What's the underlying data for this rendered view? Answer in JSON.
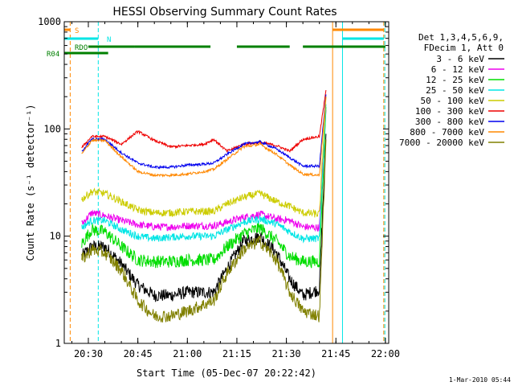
{
  "chart_data": {
    "type": "line",
    "title": "HESSI Observing Summary Count Rates",
    "xlabel": "Start Time (05-Dec-07 20:22:42)",
    "ylabel": "Count Rate (s⁻¹ detector⁻¹)",
    "xlim": [
      "20:22:42",
      "22:01:00"
    ],
    "ylim": [
      1,
      1000
    ],
    "yscale": "log",
    "grid": false,
    "x_ticks": [
      "20:30",
      "20:45",
      "21:00",
      "21:15",
      "21:30",
      "21:45",
      "22:00"
    ],
    "y_ticks": [
      "1",
      "10",
      "100",
      "1000"
    ],
    "legend_position": "right",
    "legend_header": [
      "Det 1,3,4,5,6,9,",
      "FDecim 1, Att 0"
    ],
    "footer_timestamp": "1-Mar-2010 05:44",
    "series": [
      {
        "name": "3 - 6 keV",
        "color": "#000000",
        "x": [
          "20:28",
          "20:31",
          "20:35",
          "20:40",
          "20:45",
          "20:50",
          "20:55",
          "21:00",
          "21:05",
          "21:08",
          "21:12",
          "21:17",
          "21:22",
          "21:27",
          "21:31",
          "21:35",
          "21:40",
          "21:42"
        ],
        "y": [
          6.5,
          8,
          8,
          5.5,
          3.5,
          2.8,
          2.8,
          3,
          3,
          3,
          5,
          9,
          10,
          7,
          4,
          2.8,
          3.2,
          90
        ]
      },
      {
        "name": "6 - 12 keV",
        "color": "#ee00ee",
        "x": [
          "20:28",
          "20:31",
          "20:35",
          "20:40",
          "20:45",
          "20:50",
          "20:55",
          "21:00",
          "21:05",
          "21:08",
          "21:12",
          "21:17",
          "21:22",
          "21:27",
          "21:31",
          "21:35",
          "21:40",
          "21:42"
        ],
        "y": [
          13,
          16.5,
          15.5,
          14,
          12.8,
          12.2,
          12.2,
          12.5,
          12.5,
          12.5,
          13.5,
          15,
          16,
          14.5,
          14,
          12.2,
          12,
          150
        ]
      },
      {
        "name": "12 - 25 keV",
        "color": "#00dd00",
        "x": [
          "20:28",
          "20:31",
          "20:35",
          "20:40",
          "20:45",
          "20:50",
          "20:55",
          "21:00",
          "21:05",
          "21:08",
          "21:12",
          "21:17",
          "21:22",
          "21:27",
          "21:31",
          "21:35",
          "21:40",
          "21:42"
        ],
        "y": [
          8.5,
          11.5,
          11,
          8,
          6,
          5.8,
          5.8,
          6,
          6,
          6,
          8,
          10.5,
          12,
          9,
          6.5,
          5.8,
          5.8,
          160
        ]
      },
      {
        "name": "25 - 50 keV",
        "color": "#00e5e5",
        "x": [
          "20:28",
          "20:31",
          "20:35",
          "20:40",
          "20:45",
          "20:50",
          "20:55",
          "21:00",
          "21:05",
          "21:08",
          "21:12",
          "21:17",
          "21:22",
          "21:27",
          "21:31",
          "21:35",
          "21:40",
          "21:42"
        ],
        "y": [
          12,
          14,
          14,
          11.5,
          10,
          9.5,
          9.8,
          10,
          10,
          10,
          11.5,
          13.5,
          14.5,
          13,
          11,
          9.5,
          9.5,
          170
        ]
      },
      {
        "name": "50 - 100 keV",
        "color": "#cccc00",
        "x": [
          "20:28",
          "20:31",
          "20:35",
          "20:40",
          "20:45",
          "20:50",
          "20:55",
          "21:00",
          "21:05",
          "21:08",
          "21:12",
          "21:17",
          "21:22",
          "21:27",
          "21:31",
          "21:35",
          "21:40",
          "21:42"
        ],
        "y": [
          22,
          26,
          25,
          21,
          17.5,
          16.5,
          16.5,
          17,
          17,
          17,
          20,
          23,
          25,
          21,
          19,
          16.5,
          16,
          200
        ]
      },
      {
        "name": "100 - 300 keV",
        "color": "#ee0000",
        "x": [
          "20:28",
          "20:31",
          "20:35",
          "20:40",
          "20:45",
          "20:50",
          "20:55",
          "21:00",
          "21:05",
          "21:08",
          "21:12",
          "21:17",
          "21:22",
          "21:27",
          "21:31",
          "21:35",
          "21:40",
          "21:42"
        ],
        "y": [
          67,
          85,
          85,
          72,
          95,
          78,
          68,
          70,
          72,
          80,
          62,
          72,
          75,
          70,
          62,
          80,
          85,
          230
        ]
      },
      {
        "name": "300 - 800 keV",
        "color": "#0000ee",
        "x": [
          "20:28",
          "20:31",
          "20:35",
          "20:40",
          "20:45",
          "20:50",
          "20:55",
          "21:00",
          "21:05",
          "21:08",
          "21:12",
          "21:17",
          "21:22",
          "21:27",
          "21:31",
          "21:35",
          "21:40",
          "21:42"
        ],
        "y": [
          62,
          80,
          80,
          60,
          48,
          44,
          44,
          46,
          47,
          48,
          58,
          72,
          76,
          65,
          54,
          45,
          45,
          210
        ]
      },
      {
        "name": "800 - 7000 keV",
        "color": "#ff8800",
        "x": [
          "20:28",
          "20:31",
          "20:35",
          "20:40",
          "20:45",
          "20:50",
          "20:55",
          "21:00",
          "21:05",
          "21:08",
          "21:12",
          "21:17",
          "21:22",
          "21:27",
          "21:31",
          "21:35",
          "21:40",
          "21:42"
        ],
        "y": [
          58,
          78,
          78,
          55,
          40,
          37,
          37,
          38,
          40,
          42,
          52,
          68,
          72,
          58,
          46,
          38,
          37,
          200
        ]
      },
      {
        "name": "7000 - 20000 keV",
        "color": "#808000",
        "x": [
          "20:28",
          "20:31",
          "20:35",
          "20:40",
          "20:45",
          "20:50",
          "20:55",
          "21:00",
          "21:05",
          "21:08",
          "21:12",
          "21:17",
          "21:22",
          "21:27",
          "21:31",
          "21:35",
          "21:40",
          "21:42"
        ],
        "y": [
          6,
          7.5,
          7,
          4.8,
          2.5,
          1.8,
          1.8,
          2,
          2.3,
          2.5,
          4.5,
          7.5,
          9,
          6,
          3,
          2,
          1.8,
          80
        ]
      }
    ],
    "flag_bars": [
      {
        "name": "S",
        "color": "#ff8800",
        "segments": [
          [
            "20:22:42",
            "20:24:30"
          ],
          [
            "21:44:00",
            "21:59:30"
          ]
        ]
      },
      {
        "name": "N",
        "color": "#00e5e5",
        "segments": [
          [
            "20:22:42",
            "20:33:00"
          ],
          [
            "21:47:00",
            "21:59:30"
          ]
        ]
      },
      {
        "name": "RDO",
        "color": "#008000",
        "segments": [
          [
            "20:30:00",
            "20:44:00"
          ],
          [
            "20:44:00",
            "21:07:00"
          ],
          [
            "21:15:00",
            "21:31:00"
          ],
          [
            "21:35:00",
            "22:00:00"
          ]
        ]
      },
      {
        "name": "R04",
        "color": "#008000",
        "segments": [
          [
            "20:22:42",
            "20:36:00"
          ]
        ]
      }
    ],
    "vertical_markers": [
      {
        "x": "20:22:42",
        "color": "#00e5e5",
        "style": "solid"
      },
      {
        "x": "20:24:30",
        "color": "#ff8800",
        "style": "dashed"
      },
      {
        "x": "20:33:00",
        "color": "#00e5e5",
        "style": "dashed"
      },
      {
        "x": "21:44:00",
        "color": "#ff8800",
        "style": "solid"
      },
      {
        "x": "21:47:00",
        "color": "#00e5e5",
        "style": "solid"
      },
      {
        "x": "21:59:30",
        "color": "#ff8800",
        "style": "dashed"
      },
      {
        "x": "21:59:50",
        "color": "#00e5e5",
        "style": "dashed"
      }
    ]
  }
}
